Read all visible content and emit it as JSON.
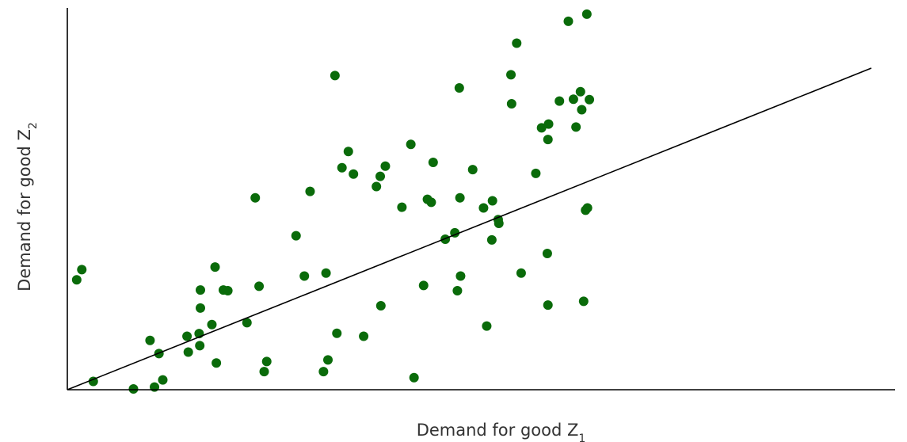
{
  "chart_data": {
    "type": "scatter",
    "title": "",
    "xlabel": "Demand for good Z",
    "xlabel_sub": "1",
    "ylabel": "Demand for good Z",
    "ylabel_sub": "2",
    "xlim": [
      0,
      100
    ],
    "ylim": [
      0,
      100
    ],
    "ticks_shown": false,
    "grid": false,
    "colors": {
      "points": "#0a6b0a",
      "line": "#000000"
    },
    "trend_line": {
      "x": [
        0,
        100
      ],
      "y": [
        0,
        84
      ]
    },
    "points": [
      {
        "x": 0.6,
        "y": 29.0
      },
      {
        "x": 1.4,
        "y": 31.7
      },
      {
        "x": 3.2,
        "y": 2.0
      },
      {
        "x": 9.5,
        "y": 0.0
      },
      {
        "x": 12.1,
        "y": 12.9
      },
      {
        "x": 12.8,
        "y": 0.5
      },
      {
        "x": 13.5,
        "y": 9.4
      },
      {
        "x": 14.1,
        "y": 2.4
      },
      {
        "x": 17.9,
        "y": 14.0
      },
      {
        "x": 18.1,
        "y": 9.8
      },
      {
        "x": 19.8,
        "y": 14.7
      },
      {
        "x": 19.9,
        "y": 11.5
      },
      {
        "x": 20.0,
        "y": 21.5
      },
      {
        "x": 20.0,
        "y": 26.3
      },
      {
        "x": 21.8,
        "y": 17.1
      },
      {
        "x": 22.3,
        "y": 32.4
      },
      {
        "x": 22.5,
        "y": 6.9
      },
      {
        "x": 23.6,
        "y": 26.3
      },
      {
        "x": 24.3,
        "y": 26.1
      },
      {
        "x": 27.3,
        "y": 17.6
      },
      {
        "x": 28.6,
        "y": 50.8
      },
      {
        "x": 29.2,
        "y": 27.3
      },
      {
        "x": 30.0,
        "y": 4.6
      },
      {
        "x": 30.4,
        "y": 7.3
      },
      {
        "x": 35.0,
        "y": 40.7
      },
      {
        "x": 36.3,
        "y": 30.0
      },
      {
        "x": 37.2,
        "y": 52.5
      },
      {
        "x": 39.3,
        "y": 4.6
      },
      {
        "x": 39.7,
        "y": 30.8
      },
      {
        "x": 40.0,
        "y": 7.7
      },
      {
        "x": 41.1,
        "y": 83.3
      },
      {
        "x": 41.4,
        "y": 14.8
      },
      {
        "x": 42.2,
        "y": 58.8
      },
      {
        "x": 43.2,
        "y": 63.1
      },
      {
        "x": 44.0,
        "y": 57.1
      },
      {
        "x": 45.6,
        "y": 14.0
      },
      {
        "x": 47.6,
        "y": 53.8
      },
      {
        "x": 48.2,
        "y": 56.5
      },
      {
        "x": 48.3,
        "y": 22.1
      },
      {
        "x": 49.0,
        "y": 59.2
      },
      {
        "x": 51.6,
        "y": 48.3
      },
      {
        "x": 53.0,
        "y": 65.0
      },
      {
        "x": 53.5,
        "y": 3.0
      },
      {
        "x": 55.0,
        "y": 27.5
      },
      {
        "x": 55.6,
        "y": 50.4
      },
      {
        "x": 56.2,
        "y": 49.6
      },
      {
        "x": 56.5,
        "y": 60.2
      },
      {
        "x": 58.4,
        "y": 39.8
      },
      {
        "x": 59.9,
        "y": 41.5
      },
      {
        "x": 60.3,
        "y": 26.1
      },
      {
        "x": 60.6,
        "y": 80.0
      },
      {
        "x": 60.7,
        "y": 50.8
      },
      {
        "x": 60.8,
        "y": 30.0
      },
      {
        "x": 62.7,
        "y": 58.3
      },
      {
        "x": 64.4,
        "y": 48.1
      },
      {
        "x": 64.9,
        "y": 16.7
      },
      {
        "x": 65.7,
        "y": 39.6
      },
      {
        "x": 65.8,
        "y": 50.0
      },
      {
        "x": 66.7,
        "y": 45.0
      },
      {
        "x": 66.8,
        "y": 44.0
      },
      {
        "x": 68.7,
        "y": 83.5
      },
      {
        "x": 68.8,
        "y": 75.8
      },
      {
        "x": 70.3,
        "y": 30.8
      },
      {
        "x": 69.6,
        "y": 91.9
      },
      {
        "x": 72.6,
        "y": 57.3
      },
      {
        "x": 73.5,
        "y": 69.4
      },
      {
        "x": 74.5,
        "y": 66.3
      },
      {
        "x": 74.6,
        "y": 70.4
      },
      {
        "x": 74.4,
        "y": 36.0
      },
      {
        "x": 74.5,
        "y": 22.3
      },
      {
        "x": 76.3,
        "y": 76.5
      },
      {
        "x": 77.7,
        "y": 97.7
      },
      {
        "x": 78.5,
        "y": 77.0
      },
      {
        "x": 78.9,
        "y": 69.6
      },
      {
        "x": 79.6,
        "y": 79.0
      },
      {
        "x": 79.8,
        "y": 74.2
      },
      {
        "x": 80.4,
        "y": 47.5
      },
      {
        "x": 80.1,
        "y": 23.3
      },
      {
        "x": 80.7,
        "y": 48.1
      },
      {
        "x": 81.0,
        "y": 76.9
      },
      {
        "x": 80.6,
        "y": 99.6
      }
    ]
  }
}
